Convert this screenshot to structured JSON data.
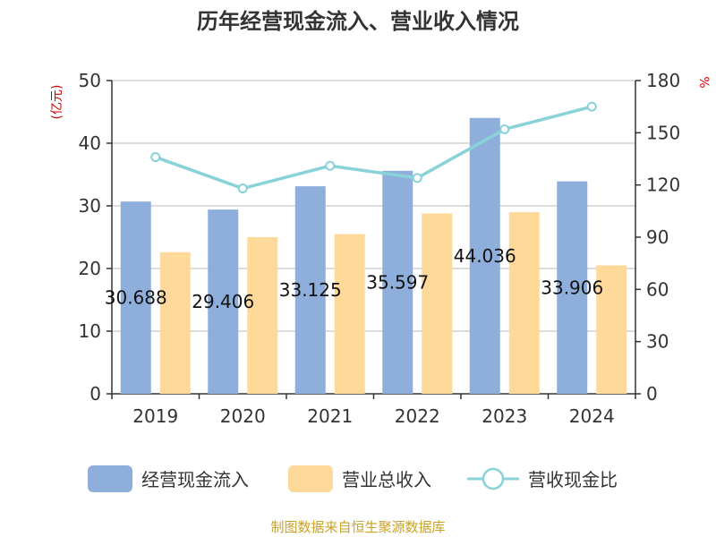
{
  "chart_data": {
    "type": "bar",
    "title": "历年经营现金流入、营业收入情况",
    "categories": [
      "2019",
      "2020",
      "2021",
      "2022",
      "2023",
      "2024"
    ],
    "y_left": {
      "label": "(亿元)",
      "range": [
        0,
        50
      ],
      "ticks": [
        0,
        10,
        20,
        30,
        40,
        50
      ]
    },
    "y_right": {
      "label": "%",
      "range": [
        0,
        180
      ],
      "ticks": [
        0,
        30,
        60,
        90,
        120,
        150,
        180
      ]
    },
    "grid": true,
    "legend_position": "bottom",
    "series": [
      {
        "name": "经营现金流入",
        "type": "bar",
        "axis": "left",
        "color": "#8eaedc",
        "values": [
          30.688,
          29.406,
          33.125,
          35.597,
          44.036,
          33.906
        ],
        "data_labels": [
          "30.688",
          "29.406",
          "33.125",
          "35.597",
          "44.036",
          "33.906"
        ]
      },
      {
        "name": "营业总收入",
        "type": "bar",
        "axis": "left",
        "color": "#ffd99a",
        "values": [
          22.6,
          25.0,
          25.5,
          28.8,
          29.0,
          20.5
        ]
      },
      {
        "name": "营收现金比",
        "type": "line",
        "axis": "right",
        "color": "#88d2d8",
        "values": [
          136,
          118,
          131,
          124,
          152,
          165
        ]
      }
    ],
    "source": "制图数据来自恒生聚源数据库"
  }
}
